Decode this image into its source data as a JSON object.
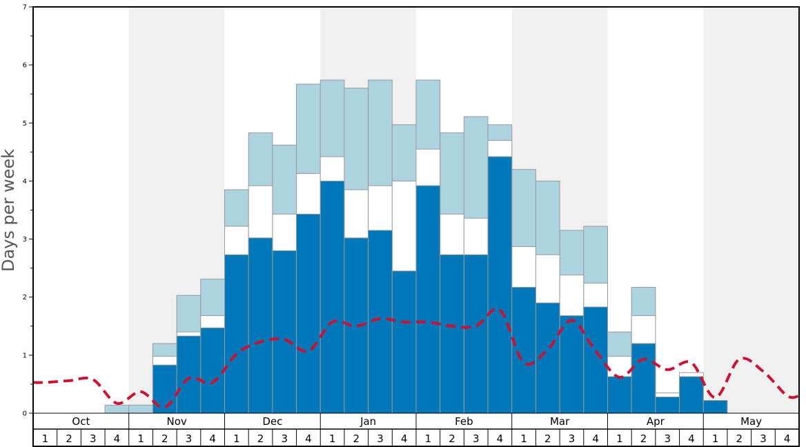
{
  "chart_data": {
    "type": "bar",
    "ylabel": "Days per week",
    "ylim": [
      0,
      7
    ],
    "y_ticks": [
      "0",
      "1",
      "2",
      "3",
      "4",
      "5",
      "6",
      "7"
    ],
    "months": [
      "Oct",
      "Nov",
      "Dec",
      "Jan",
      "Feb",
      "Mar",
      "Apr",
      "May"
    ],
    "weeks": [
      "1",
      "2",
      "3",
      "4"
    ],
    "categories": [
      "Oct 1",
      "Oct 2",
      "Oct 3",
      "Oct 4",
      "Nov 1",
      "Nov 2",
      "Nov 3",
      "Nov 4",
      "Dec 1",
      "Dec 2",
      "Dec 3",
      "Dec 4",
      "Jan 1",
      "Jan 2",
      "Jan 3",
      "Jan 4",
      "Feb 1",
      "Feb 2",
      "Feb 3",
      "Feb 4",
      "Mar 1",
      "Mar 2",
      "Mar 3",
      "Mar 4",
      "Apr 1",
      "Apr 2",
      "Apr 3",
      "Apr 4",
      "May 1",
      "May 2",
      "May 3",
      "May 4"
    ],
    "series": [
      {
        "values": [
          0,
          0,
          0,
          0,
          0,
          0.83,
          1.33,
          1.47,
          2.73,
          3.02,
          2.8,
          3.43,
          4.0,
          3.02,
          3.15,
          2.45,
          3.92,
          2.73,
          2.73,
          4.42,
          2.17,
          1.9,
          1.68,
          1.83,
          0.63,
          1.2,
          0.28,
          0.63,
          0.22,
          0,
          0,
          0
        ],
        "color": "#0077b8"
      },
      {
        "values": [
          0,
          0,
          0,
          0,
          0,
          0.98,
          1.4,
          1.68,
          3.22,
          3.92,
          3.43,
          4.13,
          4.42,
          3.85,
          3.92,
          4.0,
          4.55,
          3.43,
          3.36,
          4.7,
          2.87,
          2.73,
          2.38,
          2.24,
          0.98,
          1.68,
          0.35,
          0.7,
          0,
          0,
          0,
          0
        ],
        "color": "#ffffff"
      },
      {
        "values": [
          0,
          0,
          0,
          0.14,
          0.14,
          1.2,
          2.03,
          2.31,
          3.85,
          4.83,
          4.62,
          5.67,
          5.74,
          5.6,
          5.74,
          4.97,
          5.74,
          4.83,
          5.11,
          4.97,
          4.2,
          4.0,
          3.15,
          3.22,
          1.4,
          2.17,
          0,
          0,
          0,
          0,
          0,
          0
        ],
        "color": "#aed3e0"
      }
    ],
    "line": {
      "values": [
        0.53,
        0.56,
        0.58,
        0.17,
        0.37,
        0.1,
        0.6,
        0.53,
        1.02,
        1.23,
        1.27,
        1.07,
        1.57,
        1.5,
        1.63,
        1.57,
        1.57,
        1.5,
        1.5,
        1.78,
        0.87,
        1.1,
        1.6,
        1.07,
        0.62,
        0.93,
        0.75,
        0.87,
        0.27,
        0.93,
        0.72,
        0.3
      ],
      "color": "#cc1133",
      "style": "dashed"
    },
    "month_shading": [
      "#ffffff",
      "#f0f0f0"
    ],
    "grid": false
  }
}
